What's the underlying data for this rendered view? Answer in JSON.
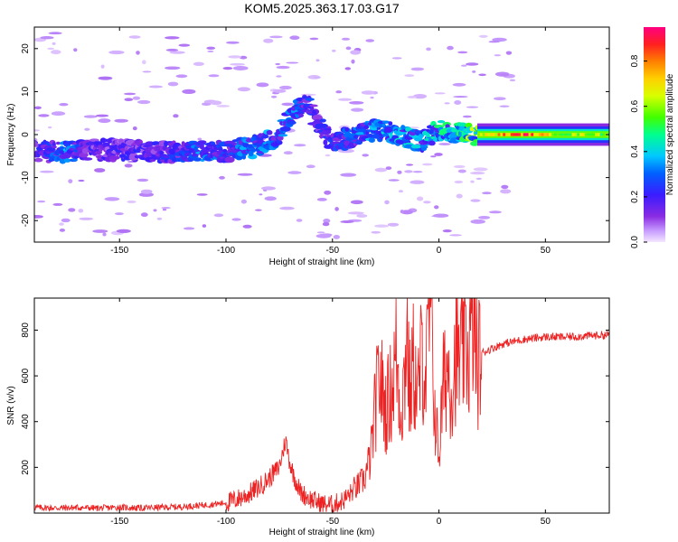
{
  "figure": {
    "title": "KOM5.2025.363.17.03.G17"
  },
  "colors": {
    "snr_line": "#ee2222",
    "axes": "#000000",
    "background": "#ffffff"
  },
  "chart_data": [
    {
      "type": "heatmap",
      "title": "KOM5.2025.363.17.03.G17",
      "xlabel": "Height of straight line (km)",
      "ylabel": "Frequency (Hz)",
      "xlim": [
        -190,
        80
      ],
      "ylim": [
        -25,
        25
      ],
      "xticks": [
        -150,
        -100,
        -50,
        0,
        50
      ],
      "yticks": [
        -20,
        -10,
        0,
        10,
        20
      ],
      "colorbar": {
        "label": "Normalized spectral amplitude",
        "range": [
          0.0,
          0.95
        ],
        "ticks": [
          "0.0",
          "0.2",
          "0.4",
          "0.6",
          "0.8"
        ],
        "colormap": "rainbow (violet-blue-cyan-green-yellow-orange-red-magenta)"
      },
      "ridge": [
        {
          "x": -185,
          "y": -4,
          "amp": 0.25
        },
        {
          "x": -175,
          "y": -4,
          "amp": 0.35
        },
        {
          "x": -165,
          "y": -3.5,
          "amp": 0.2
        },
        {
          "x": -150,
          "y": -3.5,
          "amp": 0.2
        },
        {
          "x": -135,
          "y": -4,
          "amp": 0.2
        },
        {
          "x": -120,
          "y": -4,
          "amp": 0.25
        },
        {
          "x": -110,
          "y": -4,
          "amp": 0.35
        },
        {
          "x": -100,
          "y": -4,
          "amp": 0.25
        },
        {
          "x": -95,
          "y": -3.5,
          "amp": 0.3
        },
        {
          "x": -88,
          "y": -3,
          "amp": 0.35
        },
        {
          "x": -80,
          "y": -1.5,
          "amp": 0.35
        },
        {
          "x": -75,
          "y": 0,
          "amp": 0.3
        },
        {
          "x": -70,
          "y": 4.5,
          "amp": 0.35
        },
        {
          "x": -62,
          "y": 7,
          "amp": 0.25
        },
        {
          "x": -50,
          "y": -2,
          "amp": 0.25
        },
        {
          "x": -40,
          "y": -0.5,
          "amp": 0.3
        },
        {
          "x": -30,
          "y": 1,
          "amp": 0.35
        },
        {
          "x": -22,
          "y": 0.5,
          "amp": 0.4
        },
        {
          "x": -15,
          "y": -0.5,
          "amp": 0.4
        },
        {
          "x": -8,
          "y": -1.5,
          "amp": 0.35
        },
        {
          "x": 0,
          "y": 0.8,
          "amp": 0.45
        },
        {
          "x": 5,
          "y": 1,
          "amp": 0.45
        },
        {
          "x": 12,
          "y": 0,
          "amp": 0.5
        },
        {
          "x": 20,
          "y": 0,
          "amp": 0.65
        },
        {
          "x": 30,
          "y": 0,
          "amp": 0.8
        },
        {
          "x": 40,
          "y": 0,
          "amp": 0.9
        },
        {
          "x": 50,
          "y": 0,
          "amp": 0.7
        },
        {
          "x": 60,
          "y": 0,
          "amp": 0.6
        },
        {
          "x": 70,
          "y": 0,
          "amp": 0.65
        },
        {
          "x": 80,
          "y": 0,
          "amp": 0.55
        }
      ]
    },
    {
      "type": "line",
      "xlabel": "Height of straight line (km)",
      "ylabel": "SNR (v/v)",
      "xlim": [
        -190,
        80
      ],
      "ylim": [
        0,
        940
      ],
      "xticks": [
        -150,
        -100,
        -50,
        0,
        50
      ],
      "yticks": [
        200,
        400,
        600,
        800
      ],
      "series": [
        {
          "name": "SNR",
          "x": [
            -190,
            -180,
            -170,
            -160,
            -150,
            -140,
            -130,
            -120,
            -110,
            -100,
            -95,
            -90,
            -85,
            -80,
            -75,
            -72,
            -70,
            -68,
            -65,
            -60,
            -55,
            -50,
            -45,
            -40,
            -35,
            -32,
            -30,
            -28,
            -25,
            -22,
            -20,
            -18,
            -16,
            -15,
            -14,
            -12,
            -10,
            -8,
            -6,
            -4,
            -2,
            0,
            2,
            4,
            6,
            8,
            10,
            12,
            14,
            16,
            18,
            20,
            25,
            30,
            35,
            40,
            50,
            60,
            70,
            80
          ],
          "y": [
            25,
            22,
            24,
            22,
            25,
            22,
            25,
            28,
            35,
            45,
            60,
            80,
            110,
            150,
            200,
            320,
            220,
            160,
            90,
            60,
            40,
            35,
            55,
            100,
            150,
            250,
            450,
            600,
            450,
            550,
            700,
            450,
            600,
            940,
            500,
            650,
            500,
            700,
            600,
            940,
            450,
            250,
            550,
            650,
            550,
            700,
            650,
            750,
            700,
            850,
            650,
            700,
            720,
            740,
            750,
            760,
            770,
            770,
            775,
            780
          ]
        }
      ]
    }
  ]
}
